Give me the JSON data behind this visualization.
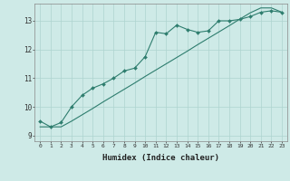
{
  "xlabel": "Humidex (Indice chaleur)",
  "ylabel": "",
  "bg_color": "#ceeae7",
  "grid_color": "#aed4d0",
  "line_color": "#2e7d6e",
  "xlim": [
    -0.5,
    23.5
  ],
  "ylim": [
    8.8,
    13.6
  ],
  "yticks": [
    9,
    10,
    11,
    12,
    13
  ],
  "xticks": [
    0,
    1,
    2,
    3,
    4,
    5,
    6,
    7,
    8,
    9,
    10,
    11,
    12,
    13,
    14,
    15,
    16,
    17,
    18,
    19,
    20,
    21,
    22,
    23
  ],
  "line1_x": [
    0,
    1,
    2,
    3,
    4,
    5,
    6,
    7,
    8,
    9,
    10,
    11,
    12,
    13,
    14,
    15,
    16,
    17,
    18,
    19,
    20,
    21,
    22,
    23
  ],
  "line1_y": [
    9.5,
    9.3,
    9.45,
    10.0,
    10.4,
    10.65,
    10.8,
    11.0,
    11.25,
    11.35,
    11.75,
    12.6,
    12.55,
    12.85,
    12.7,
    12.6,
    12.65,
    13.0,
    13.0,
    13.05,
    13.15,
    13.3,
    13.35,
    13.3
  ],
  "line2_x": [
    0,
    1,
    2,
    3,
    4,
    5,
    6,
    7,
    8,
    9,
    10,
    11,
    12,
    13,
    14,
    15,
    16,
    17,
    18,
    19,
    20,
    21,
    22,
    23
  ],
  "line2_y": [
    9.3,
    9.3,
    9.3,
    9.5,
    9.72,
    9.94,
    10.17,
    10.39,
    10.61,
    10.83,
    11.06,
    11.28,
    11.5,
    11.72,
    11.94,
    12.17,
    12.39,
    12.61,
    12.83,
    13.06,
    13.28,
    13.45,
    13.45,
    13.3
  ]
}
